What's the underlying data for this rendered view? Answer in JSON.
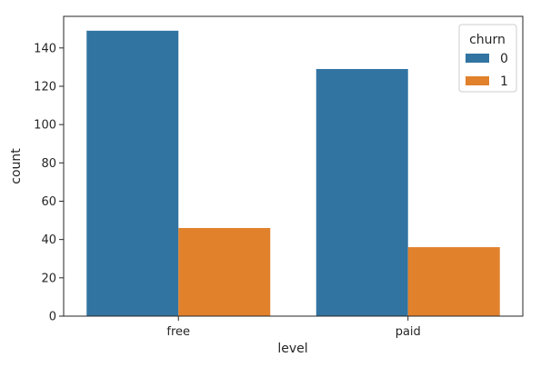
{
  "chart_data": {
    "type": "bar",
    "categories": [
      "free",
      "paid"
    ],
    "series": [
      {
        "name": "0",
        "values": [
          149,
          129
        ],
        "color": "#3274a1"
      },
      {
        "name": "1",
        "values": [
          46,
          36
        ],
        "color": "#e1812c"
      }
    ],
    "xlabel": "level",
    "ylabel": "count",
    "ylim": [
      0,
      156.5
    ],
    "yticks": [
      0,
      20,
      40,
      60,
      80,
      100,
      120,
      140
    ],
    "legend": {
      "title": "churn",
      "placement": "top-right"
    },
    "grid": false
  }
}
